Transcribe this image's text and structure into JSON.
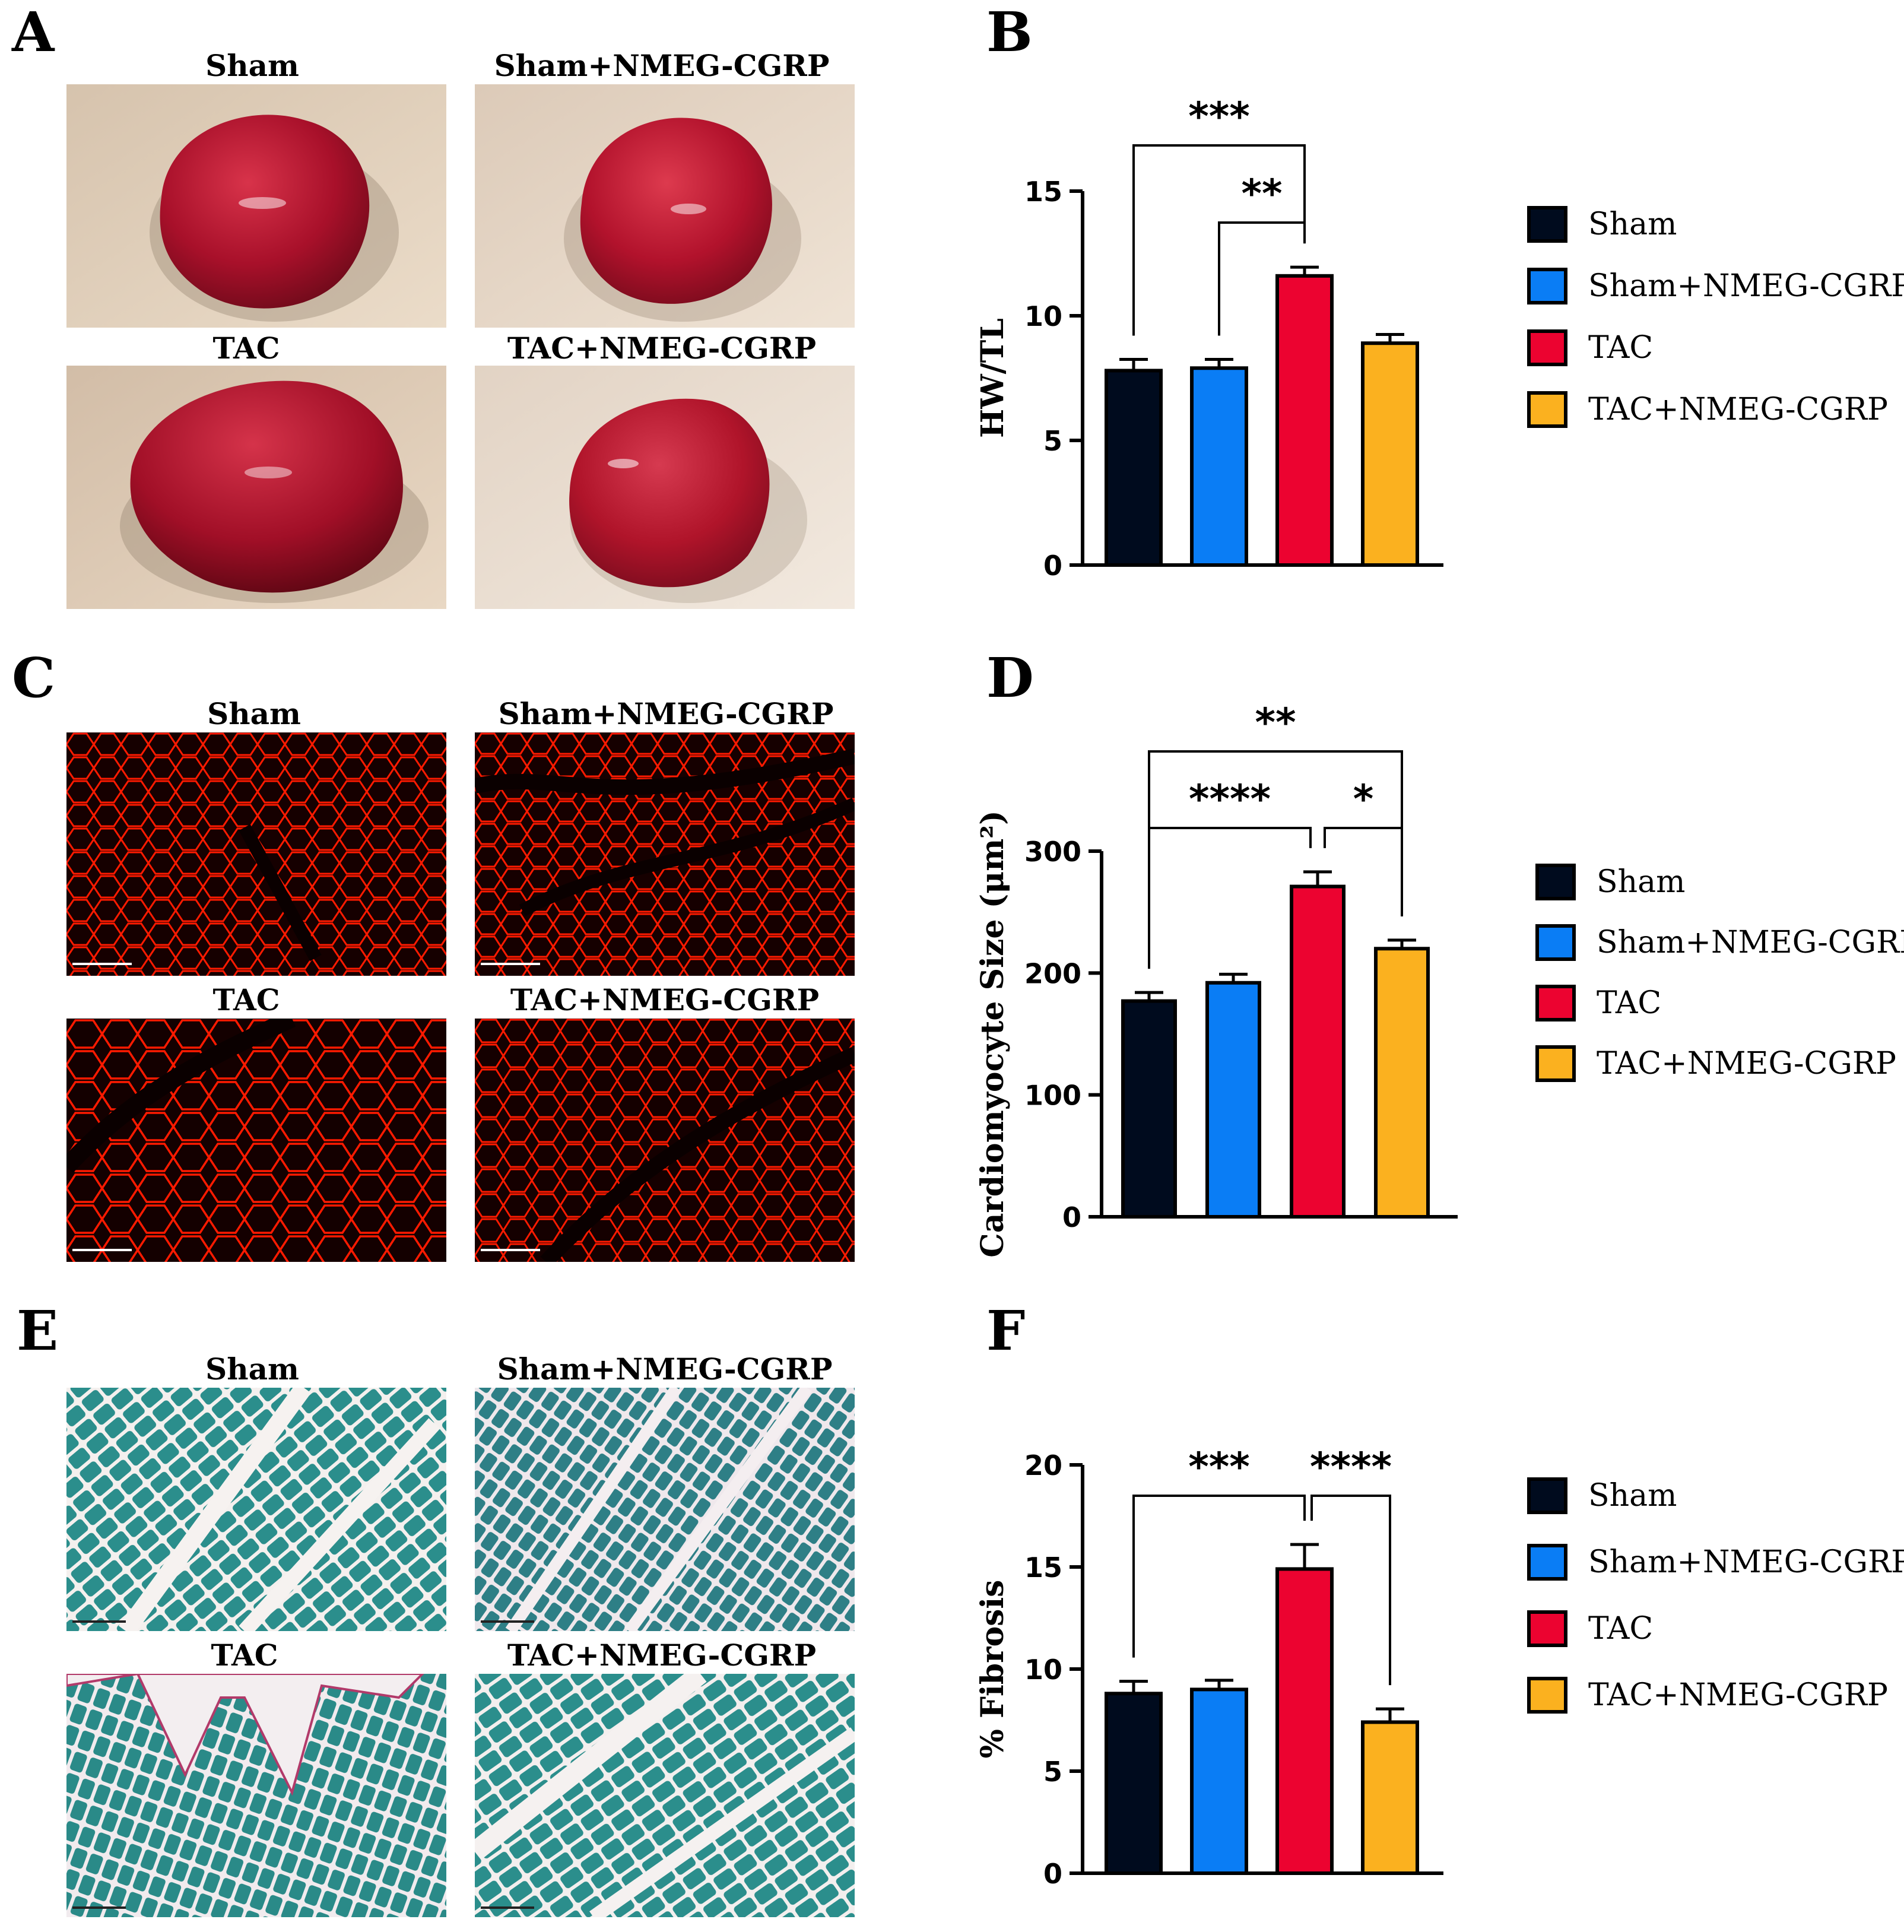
{
  "panels": {
    "A": {
      "letter": "A",
      "titles": [
        "Sham",
        "Sham+NMEG-CGRP",
        "TAC",
        "TAC+NMEG-CGRP"
      ]
    },
    "C": {
      "letter": "C",
      "titles": [
        "Sham",
        "Sham+NMEG-CGRP",
        "TAC",
        "TAC+NMEG-CGRP"
      ]
    },
    "E": {
      "letter": "E",
      "titles": [
        "Sham",
        "Sham+NMEG-CGRP",
        "TAC",
        "TAC+NMEG-CGRP"
      ]
    },
    "B": {
      "letter": "B"
    },
    "D": {
      "letter": "D"
    },
    "F": {
      "letter": "F"
    }
  },
  "colors": {
    "sham": "#000b1e",
    "sham_nmeg": "#0a7df5",
    "tac": "#ec0330",
    "tac_nmeg": "#fbb11f",
    "heart": "#b0142a",
    "wga": "#ff1400",
    "fibro_muscle": "#2b8e8c",
    "fibro_collagen": "#b23a6a"
  },
  "chart_data": [
    {
      "id": "B",
      "type": "bar",
      "categories": [
        "Sham",
        "Sham+NMEG-CGRP",
        "TAC",
        "TAC+NMEG-CGRP"
      ],
      "values": [
        7.8,
        7.9,
        11.6,
        8.9
      ],
      "errors": [
        0.45,
        0.35,
        0.35,
        0.35
      ],
      "ylabel": "HW/TL",
      "ylim": [
        0,
        15
      ],
      "yticks": [
        0,
        5,
        10,
        15
      ],
      "legend": [
        "Sham",
        "Sham+NMEG-CGRP",
        "TAC",
        "TAC+NMEG-CGRP"
      ],
      "legend_position": "right",
      "significance": [
        {
          "from": 0,
          "to": 2,
          "label": "***"
        },
        {
          "from": 1,
          "to": 2,
          "label": "**"
        }
      ]
    },
    {
      "id": "D",
      "type": "bar",
      "categories": [
        "Sham",
        "Sham+NMEG-CGRP",
        "TAC",
        "TAC+NMEG-CGRP"
      ],
      "values": [
        177,
        192,
        271,
        220
      ],
      "errors": [
        7,
        7,
        12,
        7
      ],
      "ylabel": "Cardiomyocyte Size (μm²)",
      "ylim": [
        0,
        300
      ],
      "yticks": [
        0,
        100,
        200,
        300
      ],
      "legend": [
        "Sham",
        "Sham+NMEG-CGRP",
        "TAC",
        "TAC+NMEG-CGRP"
      ],
      "legend_position": "right",
      "significance": [
        {
          "from": 0,
          "to": 3,
          "label": "**"
        },
        {
          "from": 0,
          "to": 2,
          "label": "****"
        },
        {
          "from": 2,
          "to": 3,
          "label": "*"
        }
      ]
    },
    {
      "id": "F",
      "type": "bar",
      "categories": [
        "Sham",
        "Sham+NMEG-CGRP",
        "TAC",
        "TAC+NMEG-CGRP"
      ],
      "values": [
        8.8,
        9.0,
        14.9,
        7.4
      ],
      "errors": [
        0.6,
        0.45,
        1.2,
        0.65
      ],
      "ylabel": "% Fibrosis",
      "ylim": [
        0,
        20
      ],
      "yticks": [
        0,
        5,
        10,
        15,
        20
      ],
      "legend": [
        "Sham",
        "Sham+NMEG-CGRP",
        "TAC",
        "TAC+NMEG-CGRP"
      ],
      "legend_position": "right",
      "significance": [
        {
          "from": 0,
          "to": 2,
          "label": "***"
        },
        {
          "from": 2,
          "to": 3,
          "label": "****"
        }
      ]
    }
  ]
}
